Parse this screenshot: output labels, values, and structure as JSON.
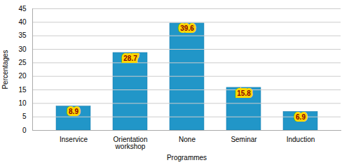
{
  "chart_data": {
    "type": "bar",
    "categories": [
      "Inservice",
      "Orientation workshop",
      "None",
      "Seminar",
      "Induction"
    ],
    "values": [
      8.9,
      28.7,
      39.6,
      15.8,
      6.9
    ],
    "color": "#2196C8",
    "xlabel": "Programmes",
    "ylabel": "Percentages",
    "ylim": [
      0,
      45
    ],
    "yticks": [
      0,
      5,
      10,
      15,
      20,
      25,
      30,
      35,
      40,
      45
    ],
    "grid": true,
    "data_labels": true
  }
}
